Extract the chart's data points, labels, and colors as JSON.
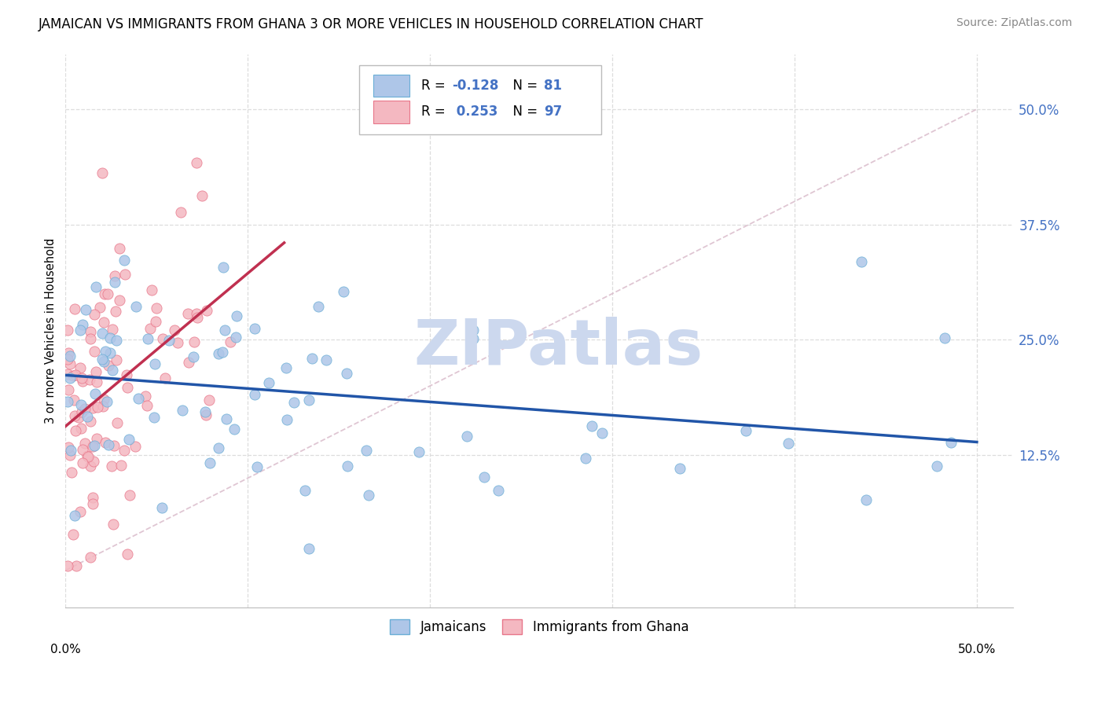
{
  "title": "JAMAICAN VS IMMIGRANTS FROM GHANA 3 OR MORE VEHICLES IN HOUSEHOLD CORRELATION CHART",
  "source": "Source: ZipAtlas.com",
  "ylabel": "3 or more Vehicles in Household",
  "ytick_labels": [
    "50.0%",
    "37.5%",
    "25.0%",
    "12.5%"
  ],
  "ytick_values": [
    0.5,
    0.375,
    0.25,
    0.125
  ],
  "xlim": [
    0.0,
    0.52
  ],
  "ylim": [
    -0.04,
    0.56
  ],
  "scatter_jamaicans_color": "#aec6e8",
  "scatter_jamaicans_edge": "#6aaed6",
  "scatter_ghana_color": "#f4b8c1",
  "scatter_ghana_edge": "#e8768a",
  "trend_jamaicans_color": "#2155a8",
  "trend_ghana_color": "#c03050",
  "diagonal_color": "#d8b8c8",
  "watermark": "ZIPatlas",
  "watermark_color": "#ccd8ee",
  "background_color": "#ffffff",
  "grid_color": "#dddddd",
  "title_fontsize": 12,
  "source_fontsize": 10,
  "ytick_color": "#4472c4",
  "bottom_legend_labels": [
    "Jamaicans",
    "Immigrants from Ghana"
  ]
}
